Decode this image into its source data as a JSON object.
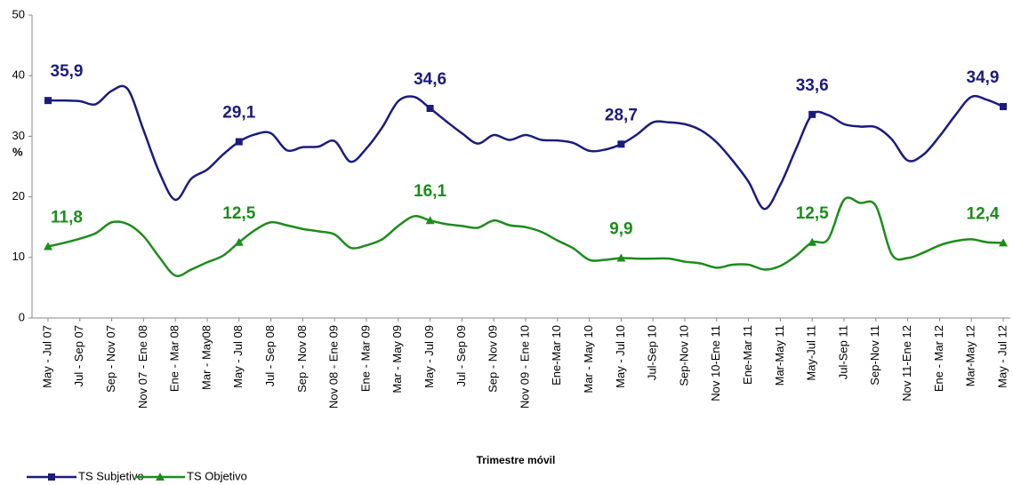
{
  "chart_data": {
    "type": "line",
    "x_label": "Trimestre móvil",
    "y_label": "%",
    "categories": [
      "May - Jul 07",
      null,
      "Jul - Sep 07",
      null,
      "Sep - Nov 07",
      null,
      "Nov 07 - Ene 08",
      null,
      "Ene - Mar 08",
      null,
      "Mar - May08",
      null,
      "May - Jul 08",
      null,
      "Jul - Sep 08",
      null,
      "Sep - Nov 08",
      null,
      "Nov 08 - Ene 09",
      null,
      "Ene - Mar 09",
      null,
      "Mar - May 09",
      null,
      "May - Jul 09",
      null,
      "Jul - Sep 09",
      null,
      "Sep - Nov 09",
      null,
      "Nov 09 - Ene 10",
      null,
      "Ene-Mar 10",
      null,
      "Mar - May 10",
      null,
      "May - Jul 10",
      null,
      "Jul-Sep 10",
      null,
      "Sep-Nov 10",
      null,
      "Nov 10-Ene 11",
      null,
      "Ene-Mar 11",
      null,
      "Mar-May 11",
      null,
      "May-Jul 11",
      null,
      "Jul-Sep 11",
      null,
      "Sep-Nov 11",
      null,
      "Nov 11-Ene 12",
      null,
      "Ene - Mar 12",
      null,
      "Mar-May 12",
      null,
      "May - Jul 12"
    ],
    "series": [
      {
        "name": "TS Subjetivo",
        "color": "#1b1b7e",
        "marker": "square",
        "values": [
          35.9,
          35.9,
          35.8,
          35.3,
          37.5,
          37.8,
          31,
          24,
          19.5,
          23,
          24.5,
          27,
          29.1,
          30.3,
          30.5,
          27.7,
          28.2,
          28.3,
          29.2,
          25.8,
          28,
          31.5,
          35.8,
          36.5,
          34.6,
          32.5,
          30.5,
          28.8,
          30.2,
          29.4,
          30.2,
          29.4,
          29.3,
          28.9,
          27.6,
          27.8,
          28.7,
          30.3,
          32.3,
          32.3,
          32,
          31,
          29,
          26,
          22.5,
          18,
          22,
          28,
          33.6,
          33.5,
          32,
          31.6,
          31.5,
          29.5,
          26,
          27,
          30,
          33.5,
          36.5,
          36,
          34.9
        ],
        "value_labels": [
          "35,9",
          null,
          null,
          null,
          null,
          null,
          null,
          null,
          null,
          null,
          null,
          null,
          "29,1",
          null,
          null,
          null,
          null,
          null,
          null,
          null,
          null,
          null,
          null,
          null,
          "34,6",
          null,
          null,
          null,
          null,
          null,
          null,
          null,
          null,
          null,
          null,
          null,
          "28,7",
          null,
          null,
          null,
          null,
          null,
          null,
          null,
          null,
          null,
          null,
          null,
          "33,6",
          null,
          null,
          null,
          null,
          null,
          null,
          null,
          null,
          null,
          null,
          null,
          "34,9"
        ]
      },
      {
        "name": "TS Objetivo",
        "color": "#1c8c1c",
        "marker": "triangle",
        "values": [
          11.8,
          12.4,
          13.1,
          14,
          15.8,
          15.5,
          13.5,
          10,
          7,
          8,
          9.2,
          10.3,
          12.5,
          14.5,
          15.8,
          15.3,
          14.7,
          14.3,
          13.8,
          11.6,
          12,
          13,
          15.2,
          16.8,
          16.1,
          15.5,
          15.2,
          14.9,
          16.1,
          15.3,
          15,
          14.2,
          12.8,
          11.5,
          9.6,
          9.6,
          9.9,
          9.8,
          9.8,
          9.8,
          9.3,
          9,
          8.3,
          8.8,
          8.8,
          8,
          8.6,
          10.3,
          12.5,
          13,
          19.5,
          19,
          18.5,
          10.5,
          9.9,
          10.8,
          12,
          12.7,
          13,
          12.5,
          12.4
        ],
        "value_labels": [
          "11,8",
          null,
          null,
          null,
          null,
          null,
          null,
          null,
          null,
          null,
          null,
          null,
          "12,5",
          null,
          null,
          null,
          null,
          null,
          null,
          null,
          null,
          null,
          null,
          null,
          "16,1",
          null,
          null,
          null,
          null,
          null,
          null,
          null,
          null,
          null,
          null,
          null,
          "9,9",
          null,
          null,
          null,
          null,
          null,
          null,
          null,
          null,
          null,
          null,
          null,
          "12,5",
          null,
          null,
          null,
          null,
          null,
          null,
          null,
          null,
          null,
          null,
          null,
          "12,4"
        ]
      }
    ],
    "ylim": [
      0,
      50
    ],
    "yticks": [
      0,
      10,
      20,
      30,
      40,
      50
    ],
    "grid": false
  }
}
